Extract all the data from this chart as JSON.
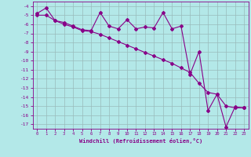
{
  "x": [
    0,
    1,
    2,
    3,
    4,
    5,
    6,
    7,
    8,
    9,
    10,
    11,
    12,
    13,
    14,
    15,
    16,
    17,
    18,
    19,
    20,
    21,
    22,
    23
  ],
  "y_curve": [
    -4.8,
    -4.2,
    -5.6,
    -5.8,
    -6.2,
    -6.6,
    -6.7,
    -4.7,
    -6.2,
    -6.5,
    -5.5,
    -6.5,
    -6.3,
    -6.4,
    -4.7,
    -6.5,
    -6.2,
    -11.5,
    -9.0,
    -15.5,
    -13.7,
    -17.3,
    -15.1,
    -15.2
  ],
  "y_trend": [
    -5.0,
    -5.0,
    -5.6,
    -6.0,
    -6.3,
    -6.7,
    -6.8,
    -7.1,
    -7.5,
    -7.9,
    -8.3,
    -8.7,
    -9.1,
    -9.5,
    -9.9,
    -10.3,
    -10.8,
    -11.3,
    -12.5,
    -13.5,
    -13.7,
    -15.0,
    -15.2,
    -15.2
  ],
  "color": "#880088",
  "bg_color": "#b3e8e8",
  "grid_color": "#99bbbb",
  "ylim": [
    -17.5,
    -3.5
  ],
  "xlim": [
    -0.5,
    23.5
  ],
  "yticks": [
    -4,
    -5,
    -6,
    -7,
    -8,
    -9,
    -10,
    -11,
    -12,
    -13,
    -14,
    -15,
    -16,
    -17
  ],
  "xticks": [
    0,
    1,
    2,
    3,
    4,
    5,
    6,
    7,
    8,
    9,
    10,
    11,
    12,
    13,
    14,
    15,
    16,
    17,
    18,
    19,
    20,
    21,
    22,
    23
  ],
  "xlabel": "Windchill (Refroidissement éolien,°C)",
  "marker": "D",
  "markersize": 2.0,
  "linewidth": 0.8
}
